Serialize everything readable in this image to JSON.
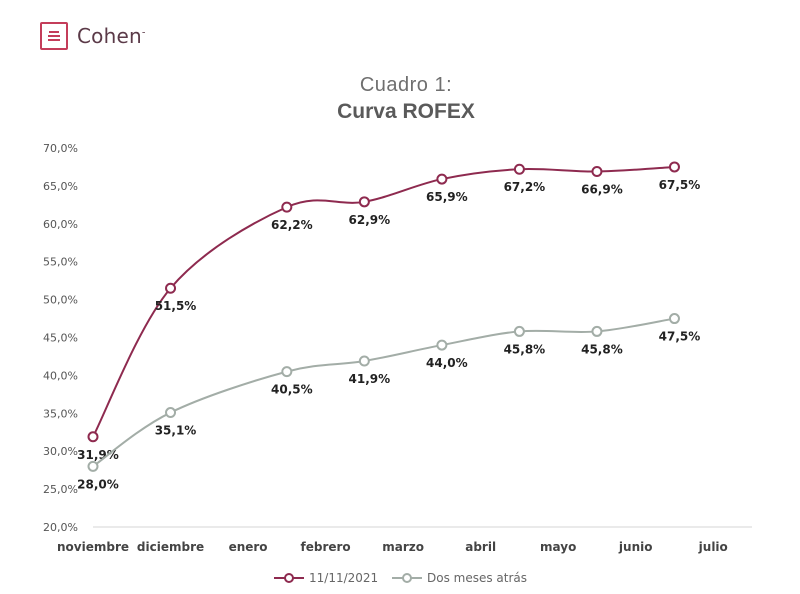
{
  "brand": {
    "name": "Cohen",
    "mark": "-",
    "logo_icon": "cohen-logo-icon"
  },
  "chart_data": {
    "type": "line",
    "title": "Cuadro 1:",
    "subtitle": "Curva ROFEX",
    "categories": [
      "noviembre",
      "diciembre",
      "enero",
      "febrero",
      "marzo",
      "abril",
      "mayo",
      "junio",
      "julio"
    ],
    "x": [
      0,
      1,
      2.5,
      3.5,
      4.5,
      5.5,
      6.5,
      7.5
    ],
    "yticks": [
      "20,0%",
      "25,0%",
      "30,0%",
      "35,0%",
      "40,0%",
      "45,0%",
      "50,0%",
      "55,0%",
      "60,0%",
      "65,0%",
      "70,0%"
    ],
    "ylim": [
      20,
      70
    ],
    "xlabel": "",
    "ylabel": "",
    "legend_position": "bottom",
    "series": [
      {
        "name": "11/11/2021",
        "color": "#8e2a4f",
        "values": [
          31.9,
          51.5,
          62.2,
          62.9,
          65.9,
          67.2,
          66.9,
          67.5
        ],
        "labels": [
          "31,9%",
          "51,5%",
          "62,2%",
          "62,9%",
          "65,9%",
          "67,2%",
          "66,9%",
          "67,5%"
        ]
      },
      {
        "name": "Dos meses atrás",
        "color": "#a3ada7",
        "values": [
          28.0,
          35.1,
          40.5,
          41.9,
          44.0,
          45.8,
          45.8,
          47.5
        ],
        "labels": [
          "28,0%",
          "35,1%",
          "40,5%",
          "41,9%",
          "44,0%",
          "45,8%",
          "45,8%",
          "47,5%"
        ]
      }
    ]
  }
}
